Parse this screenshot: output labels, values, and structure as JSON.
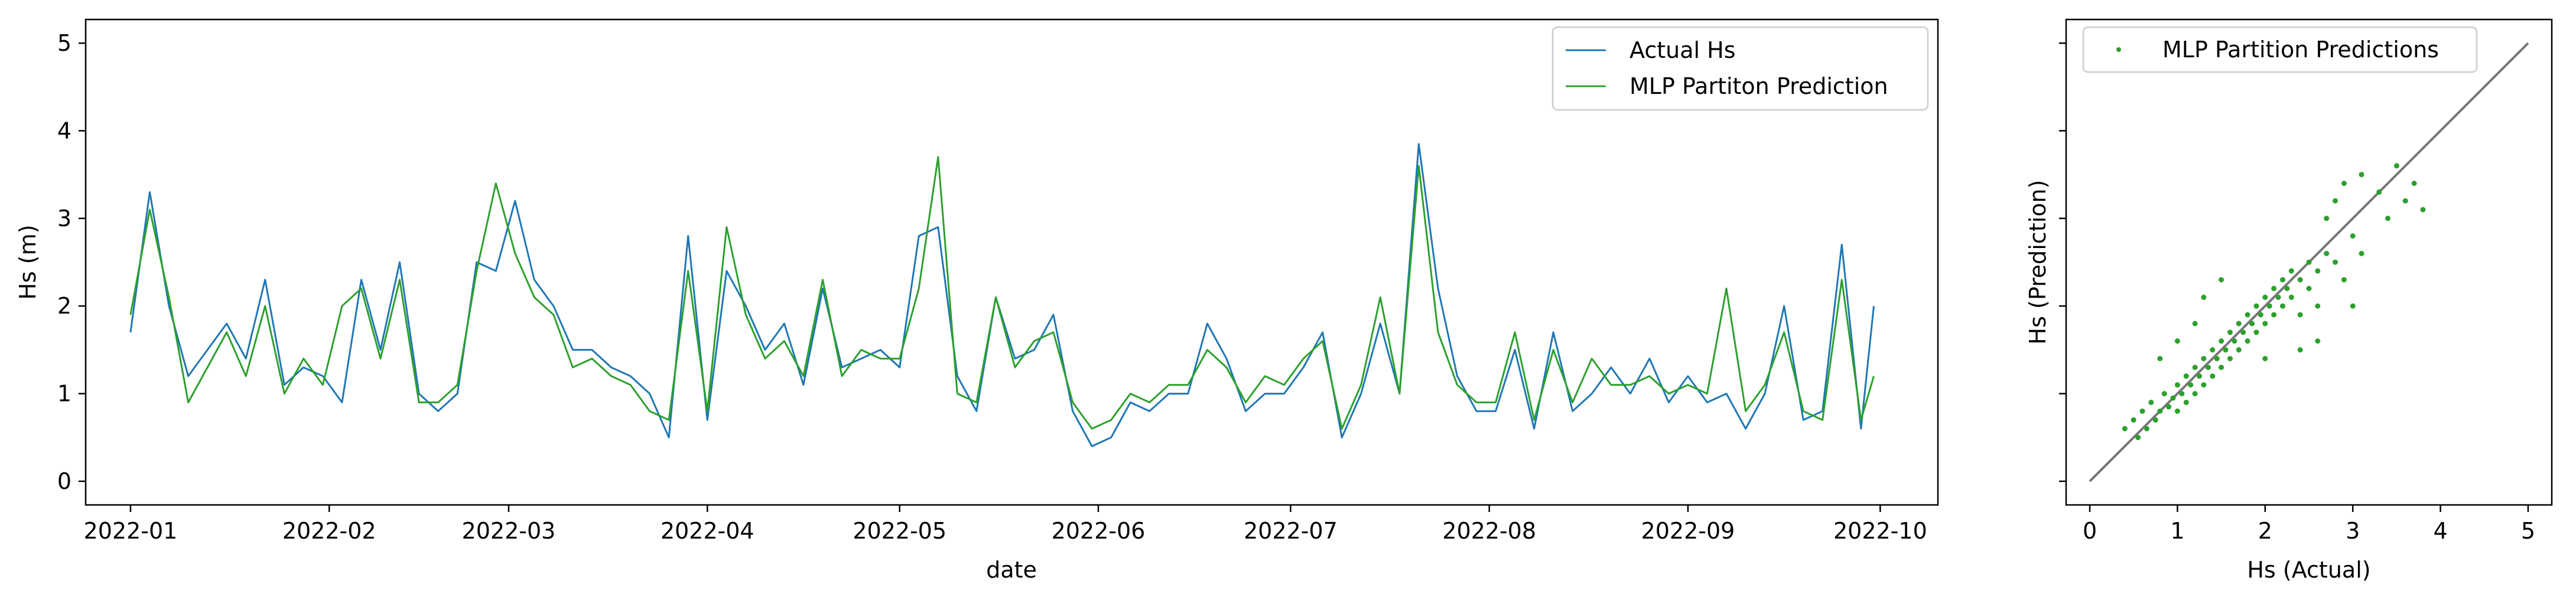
{
  "chart_data": [
    {
      "type": "line",
      "title": "",
      "xlabel": "date",
      "ylabel": "Hs (m)",
      "x_tick_labels": [
        "2022-01",
        "2022-02",
        "2022-03",
        "2022-04",
        "2022-05",
        "2022-06",
        "2022-07",
        "2022-08",
        "2022-09",
        "2022-10"
      ],
      "y_tick_labels": [
        "0",
        "1",
        "2",
        "3",
        "4",
        "5"
      ],
      "xlim": [
        "2021-12-25",
        "2022-10-10"
      ],
      "ylim": [
        -0.27,
        5.27
      ],
      "legend": "top-right",
      "grid": false,
      "x": [
        "2022-01-01",
        "2022-01-04",
        "2022-01-07",
        "2022-01-10",
        "2022-01-13",
        "2022-01-16",
        "2022-01-19",
        "2022-01-22",
        "2022-01-25",
        "2022-01-28",
        "2022-01-31",
        "2022-02-03",
        "2022-02-06",
        "2022-02-09",
        "2022-02-12",
        "2022-02-15",
        "2022-02-18",
        "2022-02-21",
        "2022-02-24",
        "2022-02-27",
        "2022-03-02",
        "2022-03-05",
        "2022-03-08",
        "2022-03-11",
        "2022-03-14",
        "2022-03-17",
        "2022-03-20",
        "2022-03-23",
        "2022-03-26",
        "2022-03-29",
        "2022-04-01",
        "2022-04-04",
        "2022-04-07",
        "2022-04-10",
        "2022-04-13",
        "2022-04-16",
        "2022-04-19",
        "2022-04-22",
        "2022-04-25",
        "2022-04-28",
        "2022-05-01",
        "2022-05-04",
        "2022-05-07",
        "2022-05-10",
        "2022-05-13",
        "2022-05-16",
        "2022-05-19",
        "2022-05-22",
        "2022-05-25",
        "2022-05-28",
        "2022-05-31",
        "2022-06-03",
        "2022-06-06",
        "2022-06-09",
        "2022-06-12",
        "2022-06-15",
        "2022-06-18",
        "2022-06-21",
        "2022-06-24",
        "2022-06-27",
        "2022-06-30",
        "2022-07-03",
        "2022-07-06",
        "2022-07-09",
        "2022-07-12",
        "2022-07-15",
        "2022-07-18",
        "2022-07-21",
        "2022-07-24",
        "2022-07-27",
        "2022-07-30",
        "2022-08-02",
        "2022-08-05",
        "2022-08-08",
        "2022-08-11",
        "2022-08-14",
        "2022-08-17",
        "2022-08-20",
        "2022-08-23",
        "2022-08-26",
        "2022-08-29",
        "2022-09-01",
        "2022-09-04",
        "2022-09-07",
        "2022-09-10",
        "2022-09-13",
        "2022-09-16",
        "2022-09-19",
        "2022-09-22",
        "2022-09-25",
        "2022-09-28",
        "2022-09-30"
      ],
      "series": [
        {
          "name": "Actual Hs",
          "color": "#1f77b4",
          "values": [
            1.7,
            3.3,
            2.0,
            1.2,
            1.5,
            1.8,
            1.4,
            2.3,
            1.1,
            1.3,
            1.2,
            0.9,
            2.3,
            1.5,
            2.5,
            1.0,
            0.8,
            1.0,
            2.5,
            2.4,
            3.2,
            2.3,
            2.0,
            1.5,
            1.5,
            1.3,
            1.2,
            1.0,
            0.5,
            2.8,
            0.7,
            2.4,
            2.0,
            1.5,
            1.8,
            1.1,
            2.2,
            1.3,
            1.4,
            1.5,
            1.3,
            2.8,
            2.9,
            1.2,
            0.8,
            2.1,
            1.4,
            1.5,
            1.9,
            0.8,
            0.4,
            0.5,
            0.9,
            0.8,
            1.0,
            1.0,
            1.8,
            1.4,
            0.8,
            1.0,
            1.0,
            1.3,
            1.7,
            0.5,
            1.0,
            1.8,
            1.0,
            3.85,
            2.2,
            1.2,
            0.8,
            0.8,
            1.5,
            0.6,
            1.7,
            0.8,
            1.0,
            1.3,
            1.0,
            1.4,
            0.9,
            1.2,
            0.9,
            1.0,
            0.6,
            1.0,
            2.0,
            0.7,
            0.8,
            2.7,
            0.6,
            2.0
          ]
        },
        {
          "name": "MLP Partiton Prediction",
          "color": "#2ca02c",
          "values": [
            1.9,
            3.1,
            2.1,
            0.9,
            1.3,
            1.7,
            1.2,
            2.0,
            1.0,
            1.4,
            1.1,
            2.0,
            2.2,
            1.4,
            2.3,
            0.9,
            0.9,
            1.1,
            2.4,
            3.4,
            2.6,
            2.1,
            1.9,
            1.3,
            1.4,
            1.2,
            1.1,
            0.8,
            0.7,
            2.4,
            0.8,
            2.9,
            1.9,
            1.4,
            1.6,
            1.2,
            2.3,
            1.2,
            1.5,
            1.4,
            1.4,
            2.2,
            3.7,
            1.0,
            0.9,
            2.1,
            1.3,
            1.6,
            1.7,
            0.9,
            0.6,
            0.7,
            1.0,
            0.9,
            1.1,
            1.1,
            1.5,
            1.3,
            0.9,
            1.2,
            1.1,
            1.4,
            1.6,
            0.6,
            1.1,
            2.1,
            1.0,
            3.6,
            1.7,
            1.1,
            0.9,
            0.9,
            1.7,
            0.7,
            1.5,
            0.9,
            1.4,
            1.1,
            1.1,
            1.2,
            1.0,
            1.1,
            1.0,
            2.2,
            0.8,
            1.1,
            1.7,
            0.8,
            0.7,
            2.3,
            0.7,
            1.2
          ]
        }
      ]
    },
    {
      "type": "scatter",
      "title": "",
      "xlabel": "Hs (Actual)",
      "ylabel": "Hs (Prediction)",
      "x_tick_labels": [
        "0",
        "1",
        "2",
        "3",
        "4",
        "5"
      ],
      "xlim": [
        -0.27,
        5.27
      ],
      "ylim": [
        -0.27,
        5.27
      ],
      "legend": "top-left",
      "grid": false,
      "identity_line": {
        "from": [
          0,
          0
        ],
        "to": [
          5,
          5
        ],
        "color": "#777777"
      },
      "series": [
        {
          "name": "MLP Partition Predictions",
          "color": "#2ca02c",
          "points": [
            [
              0.4,
              0.6
            ],
            [
              0.5,
              0.7
            ],
            [
              0.55,
              0.5
            ],
            [
              0.6,
              0.8
            ],
            [
              0.65,
              0.6
            ],
            [
              0.7,
              0.9
            ],
            [
              0.75,
              0.7
            ],
            [
              0.8,
              0.8
            ],
            [
              0.85,
              1.0
            ],
            [
              0.9,
              0.85
            ],
            [
              0.95,
              0.95
            ],
            [
              1.0,
              1.1
            ],
            [
              1.0,
              0.8
            ],
            [
              1.05,
              1.0
            ],
            [
              1.1,
              1.2
            ],
            [
              1.1,
              0.9
            ],
            [
              1.15,
              1.1
            ],
            [
              1.2,
              1.3
            ],
            [
              1.2,
              1.0
            ],
            [
              1.25,
              1.2
            ],
            [
              1.3,
              1.4
            ],
            [
              1.3,
              1.1
            ],
            [
              1.35,
              1.3
            ],
            [
              1.4,
              1.5
            ],
            [
              1.4,
              1.2
            ],
            [
              1.45,
              1.4
            ],
            [
              1.5,
              1.6
            ],
            [
              1.5,
              1.3
            ],
            [
              1.55,
              1.5
            ],
            [
              1.6,
              1.7
            ],
            [
              1.6,
              1.4
            ],
            [
              1.65,
              1.6
            ],
            [
              1.7,
              1.8
            ],
            [
              1.7,
              1.5
            ],
            [
              1.75,
              1.7
            ],
            [
              1.8,
              1.9
            ],
            [
              1.8,
              1.6
            ],
            [
              1.85,
              1.8
            ],
            [
              1.9,
              2.0
            ],
            [
              1.9,
              1.7
            ],
            [
              1.95,
              1.9
            ],
            [
              2.0,
              2.1
            ],
            [
              2.0,
              1.8
            ],
            [
              2.05,
              2.0
            ],
            [
              2.1,
              2.2
            ],
            [
              2.1,
              1.9
            ],
            [
              2.15,
              2.1
            ],
            [
              2.2,
              2.3
            ],
            [
              2.2,
              2.0
            ],
            [
              2.25,
              2.2
            ],
            [
              2.3,
              2.4
            ],
            [
              2.3,
              2.1
            ],
            [
              2.4,
              2.3
            ],
            [
              2.4,
              1.9
            ],
            [
              2.5,
              2.5
            ],
            [
              2.5,
              2.2
            ],
            [
              2.6,
              2.4
            ],
            [
              2.6,
              2.0
            ],
            [
              2.7,
              2.6
            ],
            [
              2.7,
              3.0
            ],
            [
              2.8,
              2.5
            ],
            [
              2.8,
              3.2
            ],
            [
              2.9,
              3.4
            ],
            [
              2.9,
              2.3
            ],
            [
              3.0,
              2.8
            ],
            [
              3.1,
              3.5
            ],
            [
              3.1,
              2.6
            ],
            [
              3.3,
              3.3
            ],
            [
              3.4,
              3.0
            ],
            [
              3.5,
              3.6
            ],
            [
              3.6,
              3.2
            ],
            [
              3.7,
              3.4
            ],
            [
              3.8,
              3.1
            ],
            [
              1.3,
              2.1
            ],
            [
              1.5,
              2.3
            ],
            [
              1.0,
              1.6
            ],
            [
              0.8,
              1.4
            ],
            [
              1.2,
              1.8
            ],
            [
              2.6,
              1.6
            ],
            [
              2.4,
              1.5
            ],
            [
              2.0,
              1.4
            ],
            [
              3.0,
              2.0
            ]
          ]
        }
      ]
    }
  ]
}
